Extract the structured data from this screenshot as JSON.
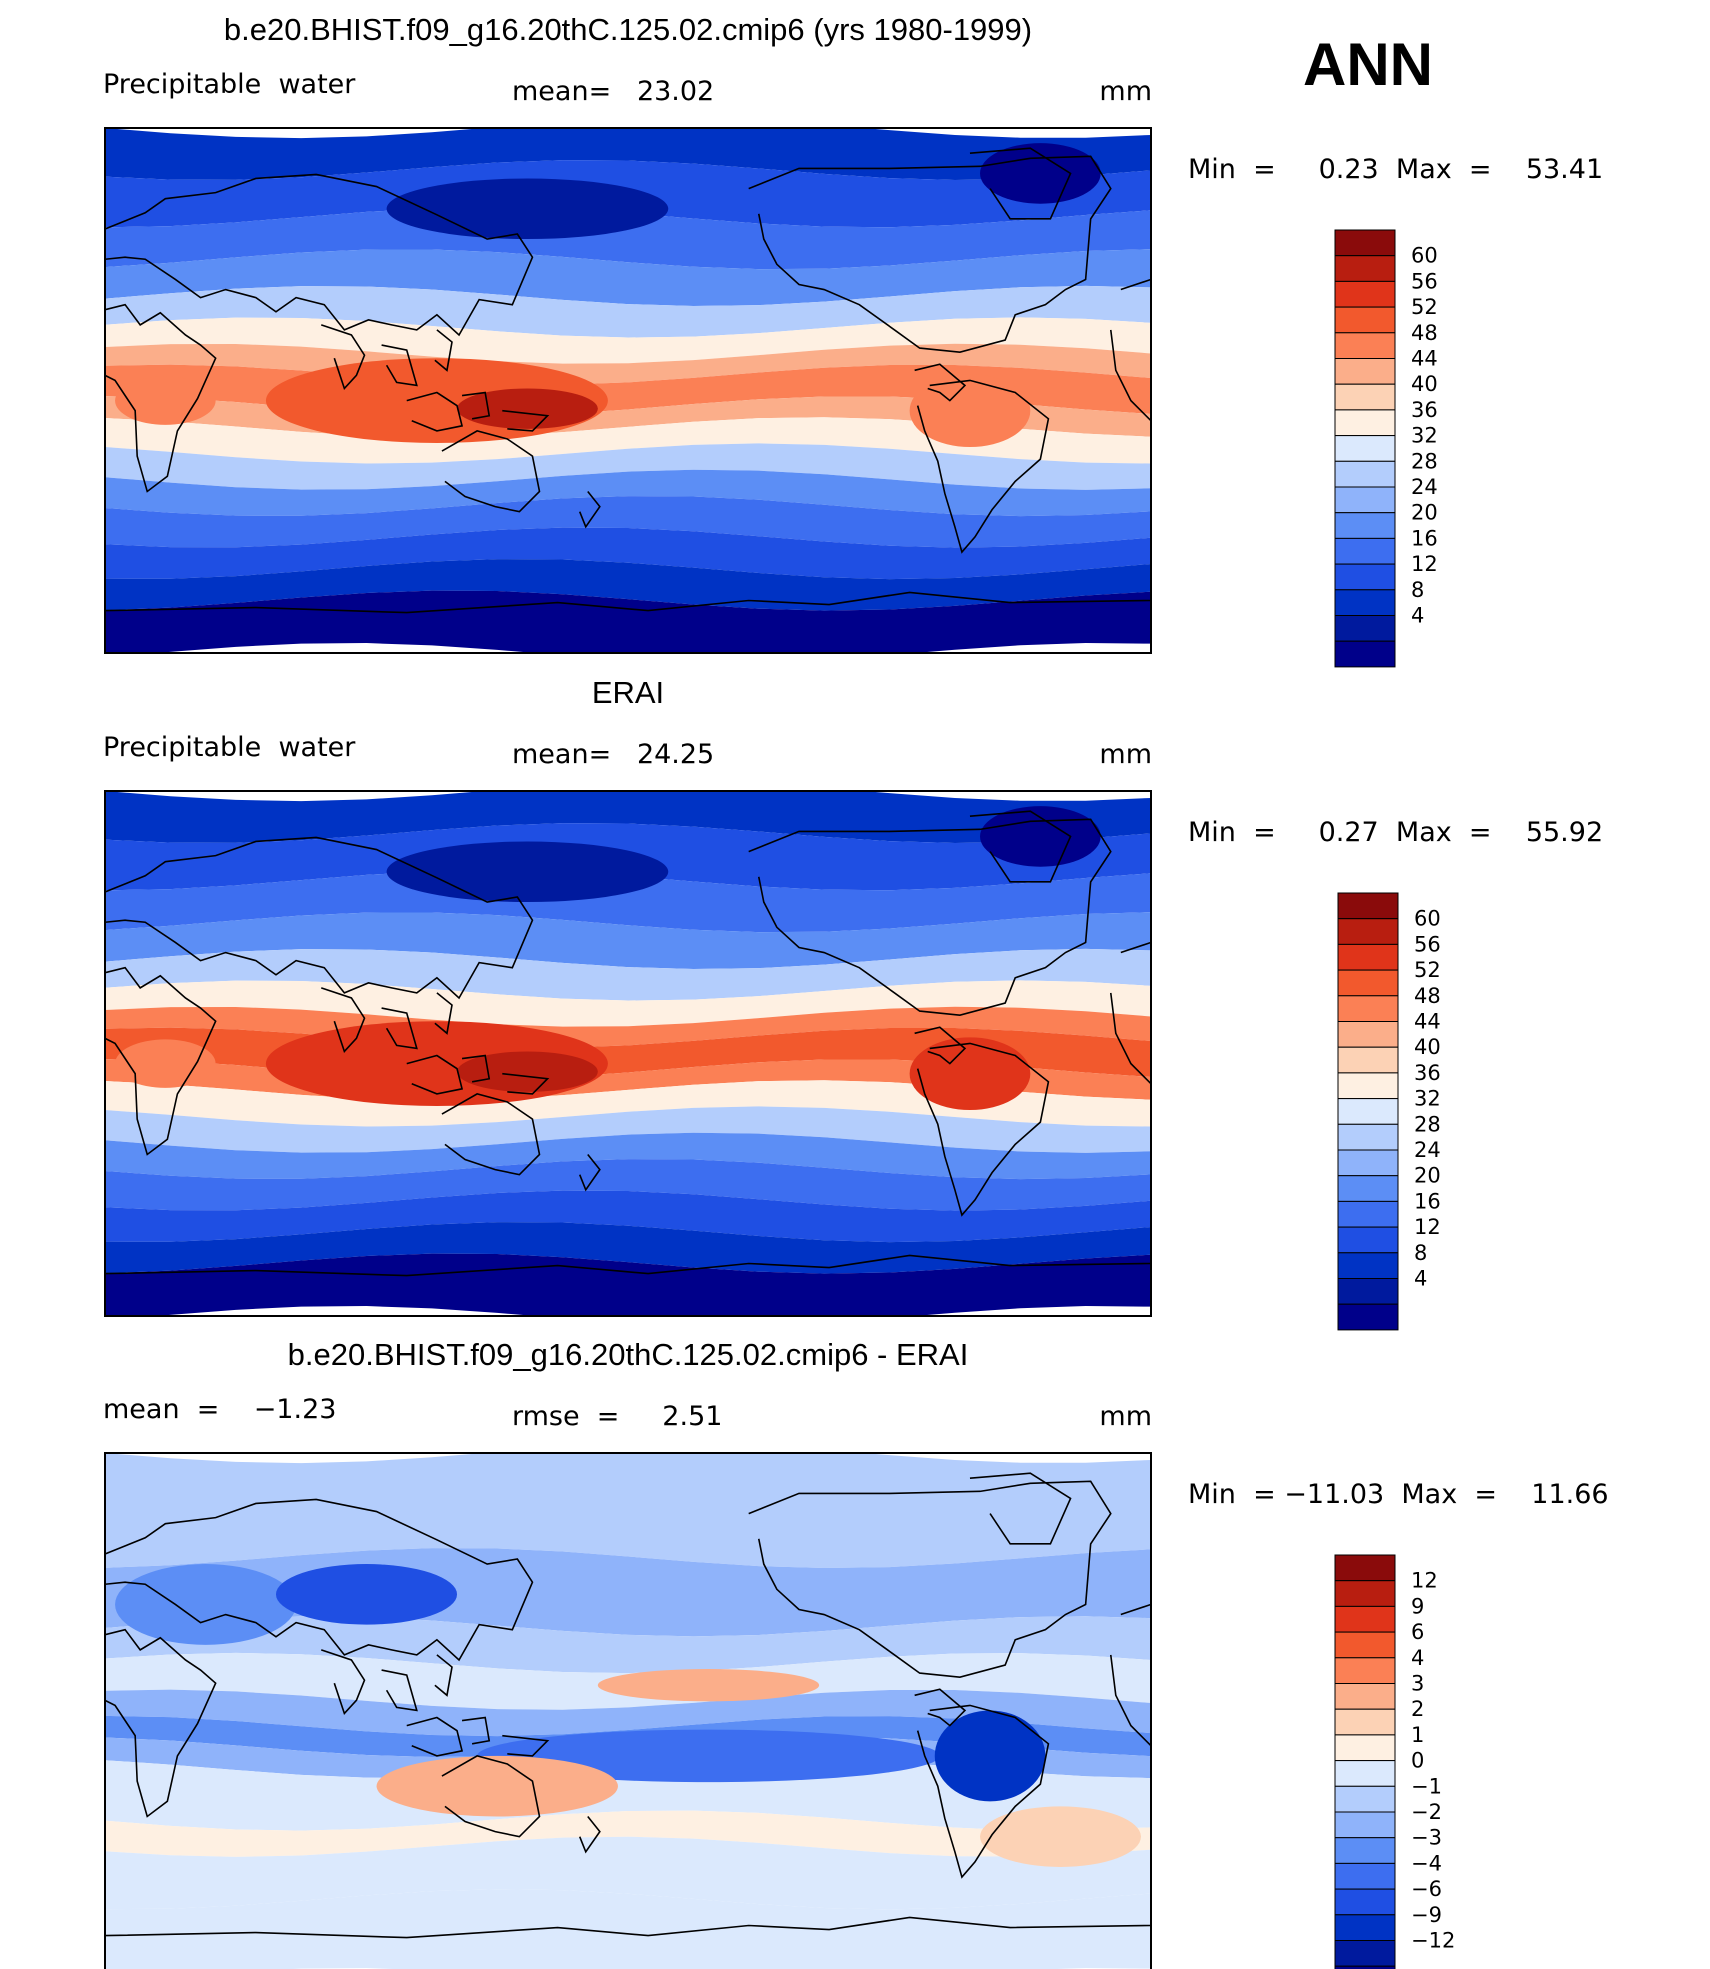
{
  "season": "ANN",
  "colormaps": {
    "abs": [
      "#00008a",
      "#001a9e",
      "#0033c4",
      "#1f4fe3",
      "#3d6ef0",
      "#5c8ef5",
      "#8fb3fa",
      "#b3cdfc",
      "#dbe9fd",
      "#fef0e2",
      "#fcd2b5",
      "#fbae8a",
      "#fb8055",
      "#f2592d",
      "#e0341a",
      "#b81e10",
      "#8a0b0b"
    ],
    "diff": [
      "#00008a",
      "#001a9e",
      "#0033c4",
      "#1f4fe3",
      "#3d6ef0",
      "#5c8ef5",
      "#8fb3fa",
      "#b3cdfc",
      "#dbe9fd",
      "#fef0e2",
      "#fcd2b5",
      "#fbae8a",
      "#fb8055",
      "#f2592d",
      "#e0341a",
      "#b81e10",
      "#8a0b0b"
    ]
  },
  "panels": [
    {
      "title": "b.e20.BHIST.f09_g16.20thC.125.02.cmip6 (yrs 1980-1999)",
      "left_label": "Precipitable  water",
      "mid_label": "mean=   23.02",
      "units": "mm",
      "minmax": "Min  =     0.23  Max  =    53.41",
      "colorbar_labels": [
        "60",
        "56",
        "52",
        "48",
        "44",
        "40",
        "36",
        "32",
        "28",
        "24",
        "20",
        "16",
        "12",
        "8",
        "4"
      ],
      "colormap": "abs"
    },
    {
      "title": "ERAI",
      "left_label": "Precipitable  water",
      "mid_label": "mean=   24.25",
      "units": "mm",
      "minmax": "Min  =     0.27  Max  =    55.92",
      "colorbar_labels": [
        "60",
        "56",
        "52",
        "48",
        "44",
        "40",
        "36",
        "32",
        "28",
        "24",
        "20",
        "16",
        "12",
        "8",
        "4"
      ],
      "colormap": "abs"
    },
    {
      "title": "b.e20.BHIST.f09_g16.20thC.125.02.cmip6 - ERAI",
      "left_label": "mean  =    −1.23",
      "mid_label": "rmse  =     2.51",
      "units": "mm",
      "minmax": "Min  = −11.03  Max  =    11.66",
      "colorbar_labels": [
        "12",
        "9",
        "6",
        "4",
        "3",
        "2",
        "1",
        "0",
        "−1",
        "−2",
        "−3",
        "−4",
        "−6",
        "−9",
        "−12"
      ],
      "colormap": "diff"
    }
  ]
}
